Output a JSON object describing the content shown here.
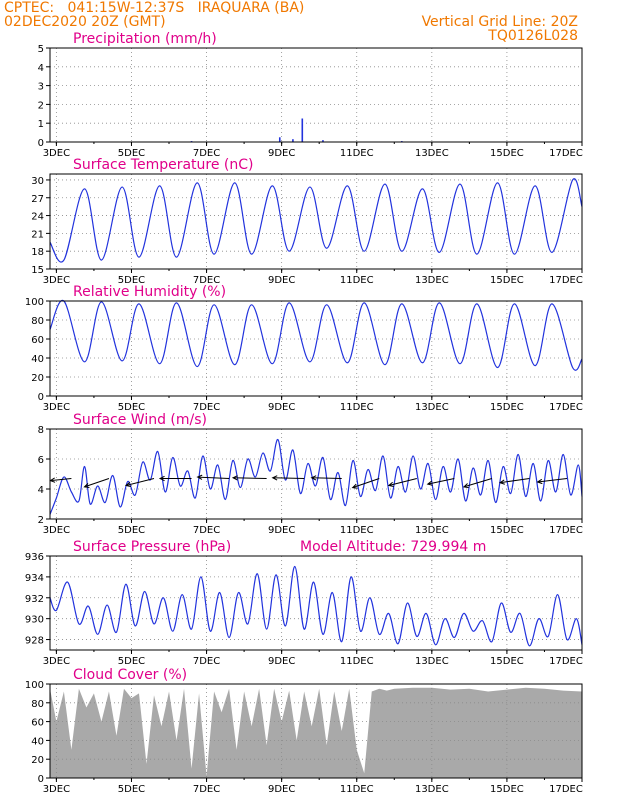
{
  "header": {
    "line1_left": "CPTEC:   041:15W-12:37S   IRAQUARA (BA)",
    "line2_left": "02DEC2020 20Z (GMT)",
    "line2_right": "Vertical Grid Line: 20Z",
    "line3_right": "TQ0126L028"
  },
  "colors": {
    "header_text": "#f07800",
    "panel_title": "#e0008a",
    "series_line": "#2233dd",
    "cloud_fill": "#a9a9a9",
    "grid": "#8a8a8a"
  },
  "chart_data": [
    {
      "id": "precip",
      "type": "bar",
      "title": "Precipitation (mm/h)",
      "ylim": [
        0,
        5
      ],
      "yticks": [
        0,
        1,
        2,
        3,
        4,
        5
      ],
      "xticks": [
        "3DEC",
        "5DEC",
        "7DEC",
        "9DEC",
        "11DEC",
        "13DEC",
        "15DEC",
        "17DEC"
      ],
      "grid": true,
      "x_start_day": 2.83,
      "x_end_day": 17.0,
      "bars": [
        {
          "day": 8.95,
          "value": 0.25
        },
        {
          "day": 9.3,
          "value": 0.15
        },
        {
          "day": 9.55,
          "value": 1.25
        },
        {
          "day": 10.1,
          "value": 0.1
        },
        {
          "day": 6.6,
          "value": 0.05
        },
        {
          "day": 12.2,
          "value": 0.05
        }
      ]
    },
    {
      "id": "temp",
      "type": "line",
      "title": "Surface Temperature (nC)",
      "ylim": [
        15,
        31
      ],
      "yticks": [
        15,
        18,
        21,
        24,
        27,
        30
      ],
      "xticks": [
        "3DEC",
        "5DEC",
        "7DEC",
        "9DEC",
        "11DEC",
        "13DEC",
        "15DEC",
        "17DEC"
      ],
      "grid": true,
      "x_start_day": 2.83,
      "x_end_day": 17.0,
      "series": [
        {
          "name": "",
          "x": [
            2.83,
            3.2,
            3.75,
            4.2,
            4.75,
            5.2,
            5.75,
            6.2,
            6.75,
            7.2,
            7.75,
            8.2,
            8.75,
            9.2,
            9.75,
            10.2,
            10.75,
            11.2,
            11.75,
            12.2,
            12.75,
            13.2,
            13.75,
            14.2,
            14.75,
            15.2,
            15.75,
            16.2,
            16.75,
            17.0
          ],
          "y": [
            19.5,
            16.5,
            28.5,
            16.5,
            28.8,
            17.0,
            29.0,
            17.0,
            29.5,
            17.5,
            29.5,
            17.5,
            29.0,
            18.0,
            28.8,
            18.5,
            29.0,
            18.0,
            29.3,
            18.0,
            28.5,
            17.8,
            29.3,
            17.5,
            29.5,
            17.5,
            29.0,
            17.8,
            30.0,
            25.5
          ]
        }
      ]
    },
    {
      "id": "rh",
      "type": "line",
      "title": "Relative Humidity (%)",
      "ylim": [
        0,
        100
      ],
      "yticks": [
        0,
        20,
        40,
        60,
        80,
        100
      ],
      "xticks": [
        "3DEC",
        "5DEC",
        "7DEC",
        "9DEC",
        "11DEC",
        "13DEC",
        "15DEC",
        "17DEC"
      ],
      "grid": true,
      "x_start_day": 2.83,
      "x_end_day": 17.0,
      "series": [
        {
          "name": "",
          "x": [
            2.83,
            3.2,
            3.75,
            4.2,
            4.75,
            5.2,
            5.75,
            6.2,
            6.75,
            7.2,
            7.75,
            8.2,
            8.75,
            9.2,
            9.75,
            10.2,
            10.75,
            11.2,
            11.75,
            12.2,
            12.75,
            13.2,
            13.75,
            14.2,
            14.75,
            15.2,
            15.75,
            16.2,
            16.75,
            17.0
          ],
          "y": [
            70,
            100,
            36,
            99,
            37,
            97,
            34,
            98,
            31,
            96,
            33,
            96,
            34,
            98,
            36,
            96,
            35,
            98,
            33,
            97,
            35,
            98,
            34,
            97,
            30,
            97,
            32,
            97,
            30,
            39
          ]
        }
      ]
    },
    {
      "id": "wind",
      "type": "line",
      "title": "Surface Wind (m/s)",
      "ylim": [
        2,
        8
      ],
      "yticks": [
        2,
        4,
        6,
        8
      ],
      "xticks": [
        "3DEC",
        "5DEC",
        "7DEC",
        "9DEC",
        "11DEC",
        "13DEC",
        "15DEC",
        "17DEC"
      ],
      "grid": true,
      "x_start_day": 2.83,
      "x_end_day": 17.0,
      "series": [
        {
          "name": "",
          "x": [
            2.83,
            3.0,
            3.2,
            3.4,
            3.6,
            3.75,
            3.9,
            4.1,
            4.3,
            4.5,
            4.7,
            4.9,
            5.1,
            5.3,
            5.5,
            5.7,
            5.9,
            6.1,
            6.3,
            6.5,
            6.7,
            6.9,
            7.1,
            7.3,
            7.5,
            7.7,
            7.9,
            8.1,
            8.3,
            8.5,
            8.7,
            8.9,
            9.1,
            9.3,
            9.5,
            9.7,
            9.9,
            10.1,
            10.3,
            10.5,
            10.7,
            10.9,
            11.1,
            11.3,
            11.5,
            11.7,
            11.9,
            12.1,
            12.3,
            12.5,
            12.7,
            12.9,
            13.1,
            13.3,
            13.5,
            13.7,
            13.9,
            14.1,
            14.3,
            14.5,
            14.7,
            14.9,
            15.1,
            15.3,
            15.5,
            15.7,
            15.9,
            16.1,
            16.3,
            16.5,
            16.7,
            16.9,
            17.0
          ],
          "y": [
            2.3,
            3.4,
            4.8,
            3.8,
            3.2,
            5.5,
            3.0,
            4.2,
            3.1,
            4.9,
            2.8,
            4.5,
            3.6,
            5.8,
            4.6,
            6.5,
            3.8,
            6.1,
            4.2,
            5.2,
            3.4,
            6.2,
            4.0,
            5.6,
            3.3,
            5.9,
            4.1,
            6.0,
            4.8,
            6.4,
            5.2,
            7.3,
            4.6,
            6.6,
            3.7,
            5.7,
            4.2,
            6.1,
            3.3,
            5.1,
            2.9,
            5.9,
            3.5,
            5.3,
            3.9,
            6.2,
            3.4,
            5.5,
            3.8,
            6.2,
            4.0,
            5.7,
            3.3,
            5.5,
            3.8,
            6.0,
            3.2,
            5.4,
            3.6,
            5.9,
            3.1,
            5.5,
            3.7,
            6.3,
            3.5,
            5.7,
            3.2,
            5.9,
            3.8,
            6.3,
            3.6,
            5.6,
            3.5
          ]
        }
      ],
      "vectors": [
        {
          "day": 3.4,
          "u": -3.0,
          "v": -0.3
        },
        {
          "day": 4.4,
          "u": -3.5,
          "v": -1.2
        },
        {
          "day": 5.6,
          "u": -4.0,
          "v": -1.0
        },
        {
          "day": 6.6,
          "u": -4.5,
          "v": 0.0
        },
        {
          "day": 7.6,
          "u": -4.5,
          "v": 0.2
        },
        {
          "day": 8.6,
          "u": -4.8,
          "v": 0.1
        },
        {
          "day": 9.6,
          "u": -4.5,
          "v": 0.1
        },
        {
          "day": 10.6,
          "u": -4.3,
          "v": 0.1
        },
        {
          "day": 11.6,
          "u": -3.8,
          "v": -1.3
        },
        {
          "day": 12.6,
          "u": -4.0,
          "v": -1.0
        },
        {
          "day": 13.6,
          "u": -3.8,
          "v": -0.8
        },
        {
          "day": 14.6,
          "u": -4.0,
          "v": -1.2
        },
        {
          "day": 15.6,
          "u": -4.2,
          "v": -0.6
        },
        {
          "day": 16.6,
          "u": -4.2,
          "v": -0.5
        }
      ]
    },
    {
      "id": "press",
      "type": "line",
      "title": "Surface Pressure (hPa)",
      "annotation": "Model Altitude: 729.994 m",
      "ylim": [
        927,
        936
      ],
      "yticks": [
        928,
        930,
        932,
        934,
        936
      ],
      "xticks": [
        "3DEC",
        "5DEC",
        "7DEC",
        "9DEC",
        "11DEC",
        "13DEC",
        "15DEC",
        "17DEC"
      ],
      "grid": true,
      "x_start_day": 2.83,
      "x_end_day": 17.0,
      "series": [
        {
          "name": "",
          "x": [
            2.83,
            3.0,
            3.3,
            3.6,
            3.85,
            4.1,
            4.35,
            4.6,
            4.85,
            5.1,
            5.35,
            5.6,
            5.85,
            6.1,
            6.35,
            6.6,
            6.85,
            7.1,
            7.35,
            7.6,
            7.85,
            8.1,
            8.35,
            8.6,
            8.85,
            9.1,
            9.35,
            9.6,
            9.85,
            10.1,
            10.35,
            10.6,
            10.85,
            11.1,
            11.35,
            11.6,
            11.85,
            12.1,
            12.35,
            12.6,
            12.85,
            13.1,
            13.35,
            13.6,
            13.85,
            14.1,
            14.35,
            14.6,
            14.85,
            15.1,
            15.35,
            15.6,
            15.85,
            16.1,
            16.35,
            16.6,
            16.85,
            17.0
          ],
          "y": [
            932.0,
            930.8,
            933.5,
            929.5,
            931.2,
            928.5,
            931.3,
            928.7,
            933.3,
            929.3,
            932.6,
            929.5,
            932.0,
            928.8,
            932.3,
            929.0,
            934.0,
            928.8,
            932.5,
            928.2,
            932.5,
            929.5,
            934.3,
            929.0,
            934.2,
            929.3,
            935.0,
            929.0,
            933.5,
            928.5,
            932.5,
            927.8,
            934.0,
            928.8,
            932.0,
            928.5,
            930.5,
            927.6,
            931.5,
            928.3,
            930.5,
            927.5,
            930.0,
            928.2,
            930.5,
            928.8,
            929.8,
            927.8,
            931.5,
            928.7,
            930.5,
            927.4,
            930.0,
            928.3,
            932.3,
            928.0,
            930.0,
            927.5
          ]
        }
      ]
    },
    {
      "id": "cloud",
      "type": "area",
      "title": "Cloud Cover (%)",
      "ylim": [
        0,
        100
      ],
      "yticks": [
        0,
        20,
        40,
        60,
        80,
        100
      ],
      "xticks": [
        "3DEC",
        "5DEC",
        "7DEC",
        "9DEC",
        "11DEC",
        "13DEC",
        "15DEC",
        "17DEC"
      ],
      "grid": true,
      "x_start_day": 2.83,
      "x_end_day": 17.0,
      "series": [
        {
          "name": "",
          "x": [
            2.83,
            3.0,
            3.2,
            3.4,
            3.6,
            3.8,
            4.0,
            4.2,
            4.4,
            4.6,
            4.8,
            5.0,
            5.2,
            5.4,
            5.6,
            5.8,
            6.0,
            6.2,
            6.4,
            6.6,
            6.8,
            7.0,
            7.2,
            7.4,
            7.6,
            7.8,
            8.0,
            8.2,
            8.4,
            8.6,
            8.8,
            9.0,
            9.2,
            9.4,
            9.6,
            9.8,
            10.0,
            10.2,
            10.4,
            10.6,
            10.8,
            11.0,
            11.2,
            11.4,
            11.6,
            11.8,
            12.0,
            12.5,
            13.0,
            13.5,
            14.0,
            14.5,
            15.0,
            15.5,
            16.0,
            16.5,
            17.0
          ],
          "y": [
            95,
            60,
            92,
            30,
            95,
            75,
            90,
            60,
            92,
            45,
            95,
            85,
            90,
            15,
            88,
            55,
            92,
            40,
            95,
            10,
            90,
            2,
            92,
            70,
            95,
            30,
            92,
            55,
            95,
            35,
            95,
            60,
            93,
            40,
            92,
            55,
            95,
            35,
            92,
            50,
            95,
            30,
            5,
            92,
            95,
            93,
            95,
            96,
            96,
            94,
            95,
            92,
            94,
            96,
            95,
            93,
            92
          ]
        }
      ]
    }
  ]
}
